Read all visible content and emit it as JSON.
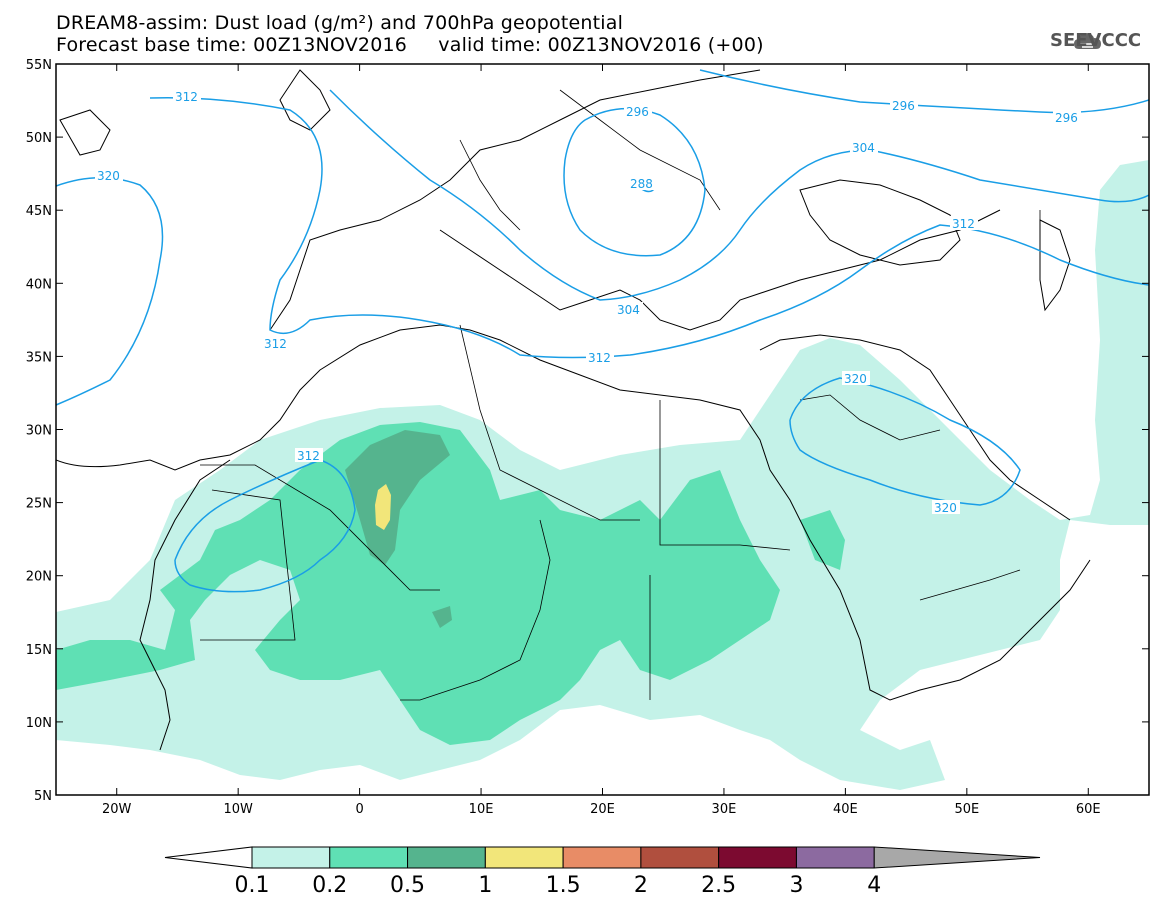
{
  "title": {
    "line1": "DREAM8-assim: Dust load (g/m²) and 700hPa geopotential",
    "line2": "Forecast base time: 00Z13NOV2016     valid time: 00Z13NOV2016 (+00)"
  },
  "logo": {
    "text": "SEEVCCC",
    "icon": "cloud-logo-icon"
  },
  "map": {
    "lat_range": [
      5,
      55
    ],
    "lon_range": [
      -25,
      65
    ],
    "lat_ticks": [
      "55N",
      "50N",
      "45N",
      "40N",
      "35N",
      "30N",
      "25N",
      "20N",
      "15N",
      "10N",
      "5N"
    ],
    "lon_ticks": [
      "20W",
      "10W",
      "0",
      "10E",
      "20E",
      "30E",
      "40E",
      "50E",
      "60E"
    ],
    "contour_labels": [
      "312",
      "296",
      "296",
      "296",
      "288",
      "304",
      "312",
      "320",
      "312",
      "304",
      "312",
      "320",
      "320",
      "312"
    ]
  },
  "colorbar": {
    "labels": [
      "0.1",
      "0.2",
      "0.5",
      "1",
      "1.5",
      "2",
      "2.5",
      "3",
      "4"
    ],
    "colors": [
      "#c4f2e8",
      "#5fe0b4",
      "#55b48e",
      "#f2e67a",
      "#e88c66",
      "#b04f3e",
      "#7c0a30",
      "#8c6aa0",
      "#a8a8a8"
    ]
  },
  "colors": {
    "contour": "#1a9ee6",
    "dust_low": "#c4f2e8",
    "dust_mid": "#5fe0b4",
    "dust_high": "#55b48e",
    "dust_peak": "#f2e67a"
  }
}
